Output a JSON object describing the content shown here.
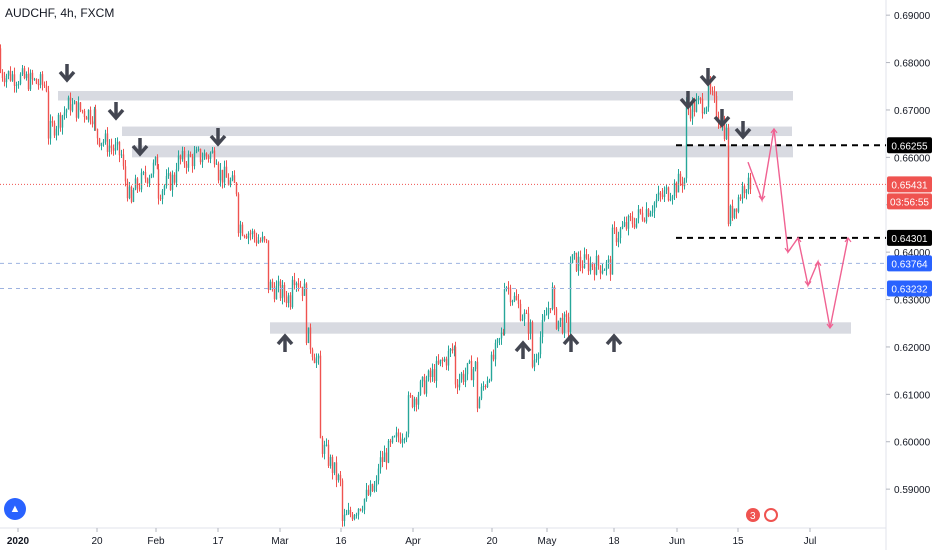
{
  "header": {
    "title": "AUDCHF, 4h, FXCM"
  },
  "chart_data": {
    "type": "candlestick",
    "symbol": "AUDCHF",
    "interval": "4h",
    "source": "FXCM",
    "ylim": [
      0.5818,
      0.6932
    ],
    "y_ticks": [
      "0.69000",
      "0.68000",
      "0.67000",
      "0.66000",
      "0.65000",
      "0.64000",
      "0.63000",
      "0.62000",
      "0.61000",
      "0.60000",
      "0.59000"
    ],
    "x_ticks": [
      "2020",
      "20",
      "Feb",
      "17",
      "Mar",
      "16",
      "Apr",
      "20",
      "May",
      "18",
      "Jun",
      "15",
      "Jul"
    ],
    "price_path": [
      [
        0.683,
        0.678
      ],
      [
        0.675,
        0.665
      ],
      [
        0.672,
        0.6705
      ],
      [
        0.669,
        0.665
      ],
      [
        0.66,
        0.657
      ],
      [
        0.648,
        0.653
      ],
      [
        0.659,
        0.653
      ],
      [
        0.656,
        0.659
      ],
      [
        0.661,
        0.657
      ],
      [
        0.653,
        0.646
      ],
      [
        0.641,
        0.633
      ],
      [
        0.63,
        0.636
      ],
      [
        0.631,
        0.623
      ],
      [
        0.615,
        0.6
      ],
      [
        0.59,
        0.583
      ],
      [
        0.591,
        0.595
      ],
      [
        0.604,
        0.608
      ],
      [
        0.62,
        0.613
      ],
      [
        0.616,
        0.608
      ],
      [
        0.624,
        0.634
      ],
      [
        0.623,
        0.616
      ],
      [
        0.633,
        0.626
      ],
      [
        0.624,
        0.638
      ],
      [
        0.637,
        0.643
      ],
      [
        0.656,
        0.67
      ],
      [
        0.672,
        0.674
      ],
      [
        0.664,
        0.647
      ],
      [
        0.656,
        0.652
      ]
    ],
    "support_zones": [
      [
        0.672,
        0.674
      ],
      [
        0.6645,
        0.6665
      ],
      [
        0.66,
        0.6625
      ],
      [
        0.6228,
        0.6252
      ]
    ],
    "levels": [
      {
        "value": 0.66255,
        "label": "0.66255",
        "style": "dashed",
        "color": "#000000"
      },
      {
        "value": 0.64301,
        "label": "0.64301",
        "style": "dashed",
        "color": "#000000"
      }
    ],
    "last_price": {
      "value": 0.65431,
      "label": "0.65431",
      "countdown": "03:56:55",
      "color": "#ef5350"
    },
    "alert_levels": [
      {
        "value": 0.63764,
        "label": "0.63764",
        "color": "#2962ff"
      },
      {
        "value": 0.63232,
        "label": "0.63232",
        "color": "#2962ff"
      }
    ],
    "projection": [
      [
        0.659,
        0.651
      ],
      [
        0.662,
        0.666
      ],
      [
        0.659,
        0.64
      ],
      [
        0.642,
        0.633
      ],
      [
        0.639,
        0.63
      ],
      [
        0.624,
        0.642
      ],
      [
        0.643,
        0.643
      ]
    ],
    "down_arrows": [
      "Jan",
      "Jan 20",
      "Feb",
      "Feb 17",
      "Jun",
      "Jun",
      "Jun",
      "Jun 15"
    ],
    "up_arrows": [
      "Mar",
      "Apr 20",
      "May",
      "May 18"
    ],
    "colors": {
      "up": "#26a69a",
      "down": "#ef5350",
      "zone": "#d1d4dc",
      "projection": "#f06292",
      "arrow": "#434651"
    }
  },
  "footer": {
    "badge_count": "3"
  }
}
